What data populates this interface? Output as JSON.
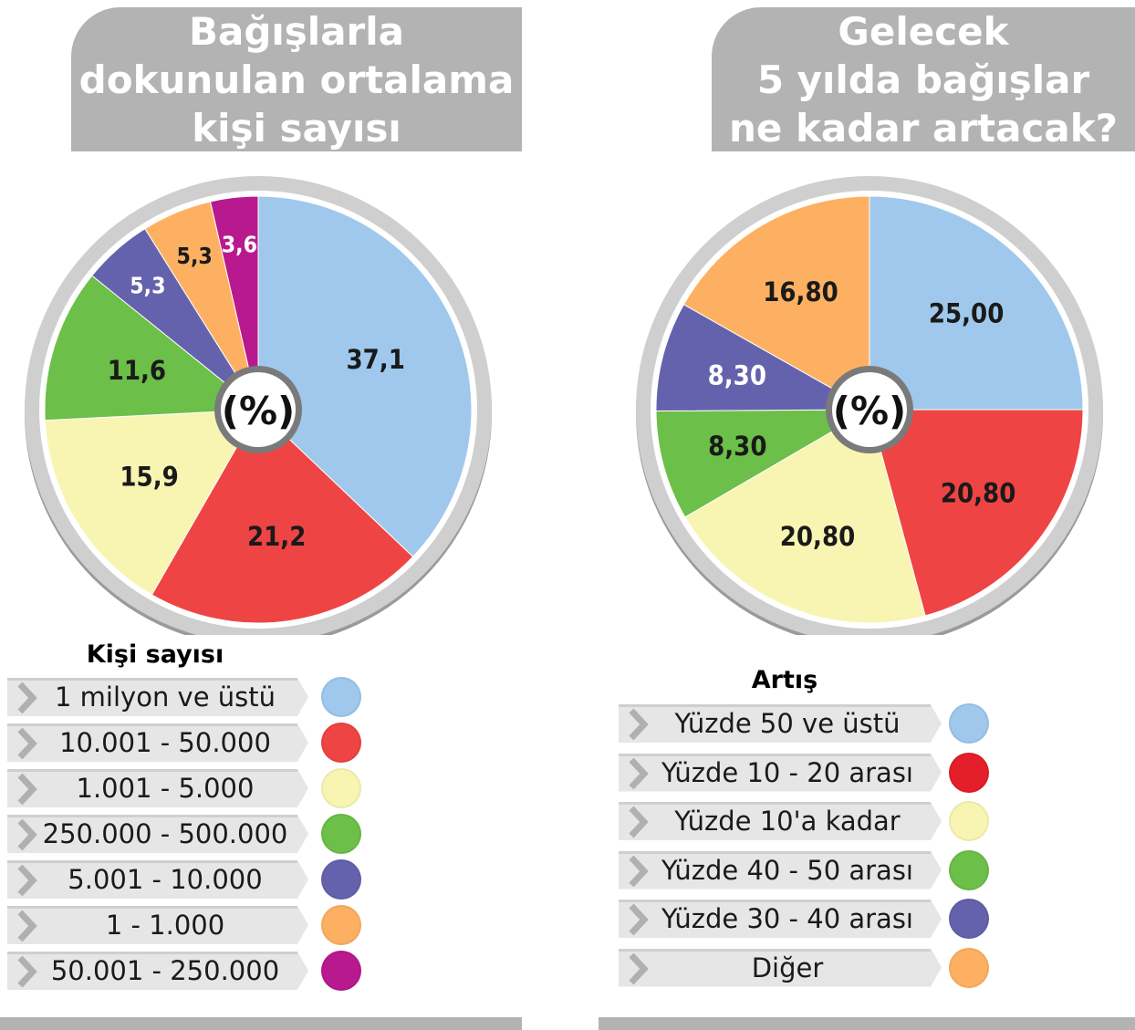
{
  "chart_data": [
    {
      "type": "pie",
      "title": "Bağışlarla\ndokunulan ortalama\nkişi sayısı",
      "center_label": "(%)",
      "legend_title": "Kişi sayısı",
      "categories": [
        "1 milyon ve üstü",
        "10.001 - 50.000",
        "1.001 - 5.000",
        "250.000 - 500.000",
        "5.001 - 10.000",
        "1 - 1.000",
        "50.001 - 250.000"
      ],
      "values": [
        37.1,
        21.2,
        15.9,
        11.6,
        5.3,
        5.3,
        3.6
      ],
      "value_labels": [
        "37,1",
        "21,2",
        "15,9",
        "11,6",
        "5,3",
        "5,3",
        "3,6"
      ],
      "colors": [
        "#9fc8ec",
        "#ef4444",
        "#f8f5b3",
        "#6cbf48",
        "#6562ad",
        "#fdb062",
        "#b8198e"
      ],
      "label_colors": [
        "#1a1a1a",
        "#1a1a1a",
        "#1a1a1a",
        "#1a1a1a",
        "#ffffff",
        "#1a1a1a",
        "#ffffff"
      ]
    },
    {
      "type": "pie",
      "title": "Gelecek\n5 yılda bağışlar\nne kadar artacak?",
      "center_label": "(%)",
      "legend_title": "Artış",
      "categories": [
        "Yüzde 50 ve üstü",
        "Yüzde 10 - 20 arası",
        "Yüzde 10'a kadar",
        "Yüzde 40 - 50 arası",
        "Yüzde 30 - 40 arası",
        "Diğer"
      ],
      "values": [
        25.0,
        20.8,
        20.8,
        8.3,
        8.3,
        16.8
      ],
      "value_labels": [
        "25,00",
        "20,80",
        "20,80",
        "8,30",
        "8,30",
        "16,80"
      ],
      "colors": [
        "#9fc8ec",
        "#ef4444",
        "#f8f5b3",
        "#6cbf48",
        "#6562ad",
        "#fdb062"
      ],
      "dot_colors": [
        "#9fc8ec",
        "#e41e2a",
        "#f8f5b3",
        "#6cbf48",
        "#6562ad",
        "#fdb062"
      ],
      "label_colors": [
        "#1a1a1a",
        "#1a1a1a",
        "#1a1a1a",
        "#1a1a1a",
        "#ffffff",
        "#1a1a1a"
      ]
    }
  ]
}
